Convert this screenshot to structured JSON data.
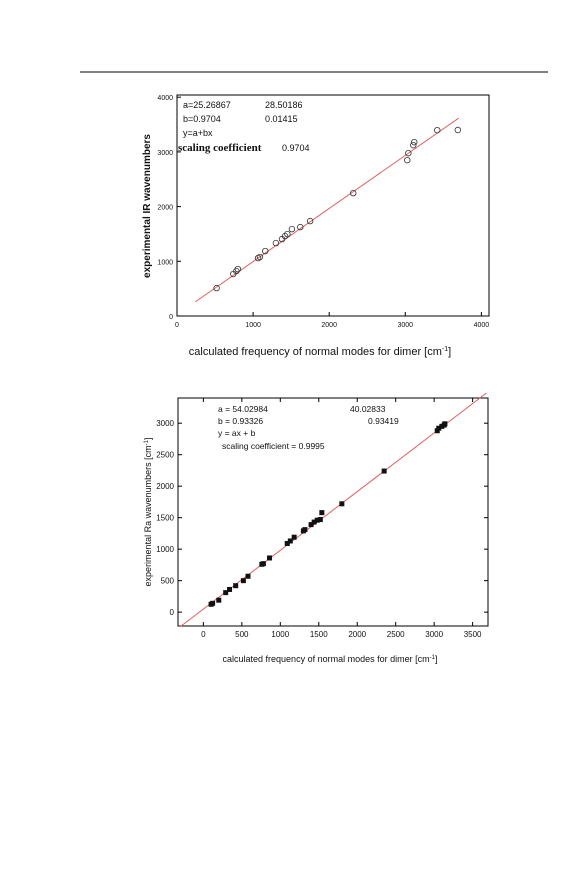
{
  "chart_data": [
    {
      "type": "scatter",
      "annotations": [
        "a=25.26867",
        "28.50186",
        "b=0.9704",
        "0.01415",
        "y=a+bx",
        "scaling coefficient",
        "0.9704"
      ],
      "x_label": {
        "text": "calculated frequency of normal modes for dimer [cm",
        "sup": "-1",
        "end": "]"
      },
      "y_label": {
        "text": "experimental IR wavenumbers"
      },
      "xlim": [
        0,
        4100
      ],
      "ylim": [
        0,
        4040
      ],
      "xticks": [
        0,
        1000,
        2000,
        3000,
        4000
      ],
      "yticks": [
        0,
        1000,
        2000,
        3000,
        4000
      ],
      "marker": "circle",
      "color": "#333333",
      "x": [
        520,
        740,
        780,
        800,
        1066,
        1090,
        1160,
        1300,
        1380,
        1420,
        1450,
        1510,
        1620,
        1750,
        2316,
        3026,
        3040,
        3105,
        3118,
        3420,
        3690
      ],
      "y": [
        510,
        767,
        820,
        858,
        1059,
        1078,
        1187,
        1333,
        1406,
        1461,
        1498,
        1589,
        1625,
        1735,
        2247,
        2849,
        2977,
        3123,
        3178,
        3397,
        3400
      ],
      "fit": {
        "color": "#e06060",
        "x": [
          240,
          3700
        ],
        "y": [
          258,
          3616
        ]
      }
    },
    {
      "type": "scatter",
      "annotations": [
        "a = 54.02984",
        "40.02833",
        "b = 0.93326",
        "0.93419",
        "y = ax + b",
        "scaling coefficient = 0.9995"
      ],
      "x_label": {
        "text": "calculated frequency of normal modes for dimer [cm",
        "sup": "-1",
        "end": "]"
      },
      "y_label": {
        "text": "experimental Ra  wavenumbers [cm",
        "sup": "-1",
        "end": "]"
      },
      "xlim": [
        -330,
        3700
      ],
      "ylim": [
        -220,
        3400
      ],
      "xticks": [
        0,
        500,
        1000,
        1500,
        2000,
        2500,
        3000,
        3500
      ],
      "yticks": [
        0,
        500,
        1000,
        1500,
        2000,
        2500,
        3000
      ],
      "marker": "square",
      "color": "#111111",
      "x": [
        100,
        120,
        200,
        290,
        340,
        420,
        520,
        580,
        760,
        780,
        860,
        1090,
        1130,
        1180,
        1300,
        1320,
        1400,
        1440,
        1480,
        1520,
        1540,
        1800,
        2350,
        3040,
        3060,
        3100,
        3130,
        3140
      ],
      "y": [
        125,
        140,
        190,
        310,
        360,
        420,
        500,
        570,
        760,
        770,
        860,
        1090,
        1130,
        1190,
        1290,
        1310,
        1390,
        1430,
        1460,
        1470,
        1580,
        1720,
        2240,
        2880,
        2920,
        2950,
        2970,
        2990
      ],
      "fit": {
        "color": "#e06060",
        "x": [
          -300,
          3680
        ],
        "y": [
          -230,
          3480
        ]
      }
    }
  ]
}
